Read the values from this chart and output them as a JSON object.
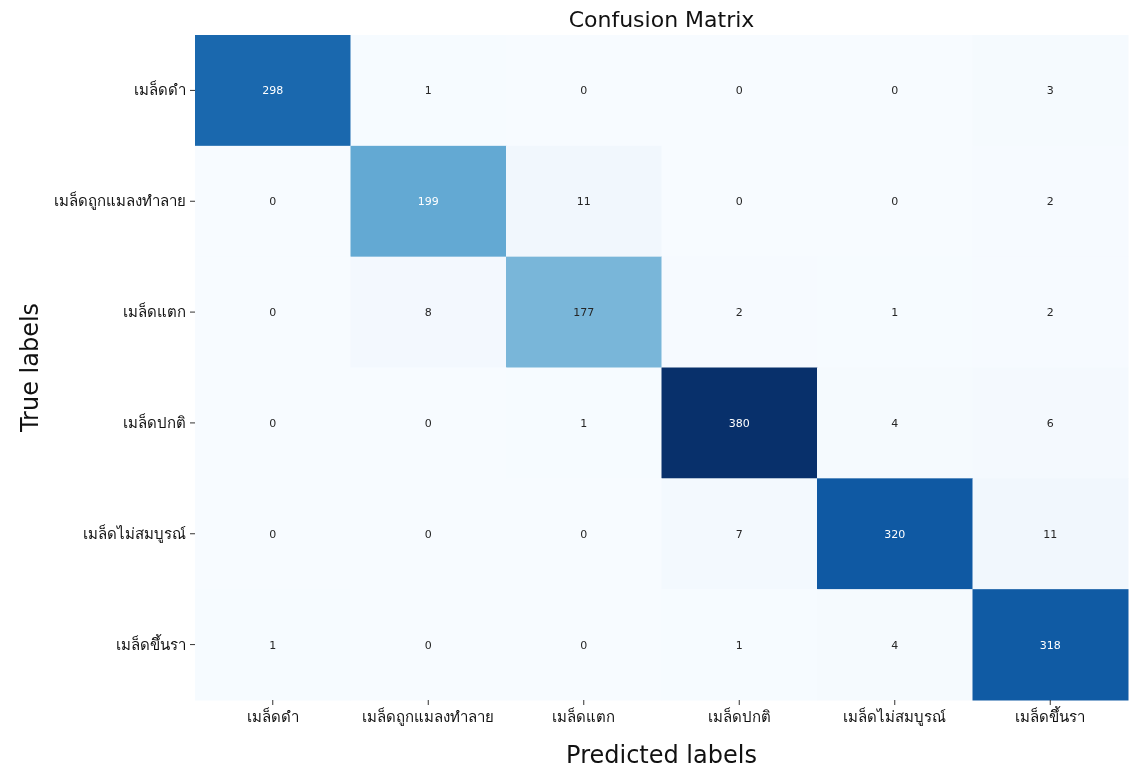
{
  "chart_data": {
    "type": "heatmap",
    "title": "Confusion Matrix",
    "xlabel": "Predicted labels",
    "ylabel": "True labels",
    "categories": [
      "เมล็ดดำ",
      "เมล็ดถูกแมลงทำลาย",
      "เมล็ดแตก",
      "เมล็ดปกติ",
      "เมล็ดไม่สมบูรณ์",
      "เมล็ดขึ้นรา"
    ],
    "y_categories": [
      "เมล็ดดำ",
      "เมล็ดถูกแมลงทำลาย",
      "เมล็ดแตก",
      "เมล็ดปกติ",
      "เมล็ดไม่สมบูรณ์",
      "เมล็ดขึ้นรา"
    ],
    "cells": [
      [
        298,
        1,
        0,
        0,
        0,
        3
      ],
      [
        0,
        199,
        11,
        0,
        0,
        2
      ],
      [
        0,
        8,
        177,
        2,
        1,
        2
      ],
      [
        0,
        0,
        1,
        380,
        4,
        6
      ],
      [
        0,
        0,
        0,
        7,
        320,
        11
      ],
      [
        1,
        0,
        0,
        1,
        4,
        318
      ]
    ],
    "data_labels": true
  }
}
